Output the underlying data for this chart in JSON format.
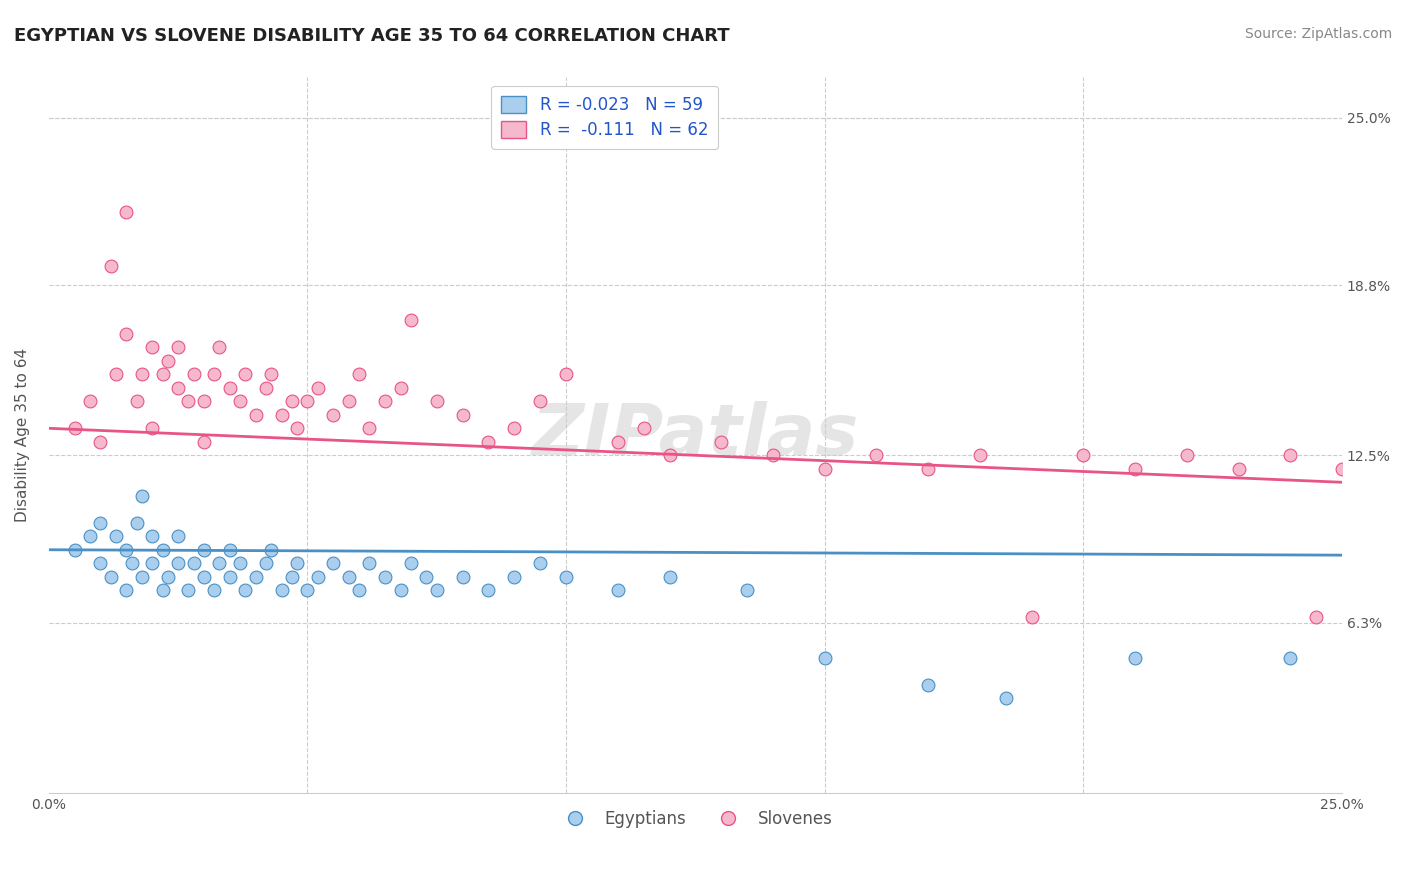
{
  "title": "EGYPTIAN VS SLOVENE DISABILITY AGE 35 TO 64 CORRELATION CHART",
  "source": "Source: ZipAtlas.com",
  "ylabel": "Disability Age 35 to 64",
  "xmin": 0.0,
  "xmax": 0.25,
  "ymin": 0.0,
  "ymax": 0.265,
  "yticks": [
    0.063,
    0.125,
    0.188,
    0.25
  ],
  "ytick_labels": [
    "6.3%",
    "12.5%",
    "18.8%",
    "25.0%"
  ],
  "right_ytick_labels": [
    "6.3%",
    "12.5%",
    "18.8%",
    "25.0%"
  ],
  "legend_r1": "R = -0.023",
  "legend_n1": "N = 59",
  "legend_r2": "R =  -0.111",
  "legend_n2": "N = 62",
  "color_egyptian": "#aacfee",
  "color_slovene": "#f5b8cc",
  "color_line_egyptian": "#4a90c4",
  "color_line_slovene": "#e85585",
  "watermark": "ZIPatlas",
  "egyptian_x": [
    0.005,
    0.008,
    0.01,
    0.01,
    0.012,
    0.013,
    0.015,
    0.015,
    0.016,
    0.017,
    0.018,
    0.018,
    0.02,
    0.02,
    0.022,
    0.022,
    0.023,
    0.025,
    0.025,
    0.027,
    0.028,
    0.03,
    0.03,
    0.032,
    0.033,
    0.035,
    0.035,
    0.037,
    0.038,
    0.04,
    0.042,
    0.043,
    0.045,
    0.047,
    0.048,
    0.05,
    0.052,
    0.055,
    0.058,
    0.06,
    0.062,
    0.065,
    0.068,
    0.07,
    0.073,
    0.075,
    0.08,
    0.085,
    0.09,
    0.095,
    0.1,
    0.11,
    0.12,
    0.135,
    0.15,
    0.17,
    0.185,
    0.21,
    0.24
  ],
  "egyptian_y": [
    0.09,
    0.095,
    0.085,
    0.1,
    0.08,
    0.095,
    0.075,
    0.09,
    0.085,
    0.1,
    0.08,
    0.11,
    0.085,
    0.095,
    0.075,
    0.09,
    0.08,
    0.085,
    0.095,
    0.075,
    0.085,
    0.08,
    0.09,
    0.075,
    0.085,
    0.08,
    0.09,
    0.085,
    0.075,
    0.08,
    0.085,
    0.09,
    0.075,
    0.08,
    0.085,
    0.075,
    0.08,
    0.085,
    0.08,
    0.075,
    0.085,
    0.08,
    0.075,
    0.085,
    0.08,
    0.075,
    0.08,
    0.075,
    0.08,
    0.085,
    0.08,
    0.075,
    0.08,
    0.075,
    0.05,
    0.04,
    0.035,
    0.05,
    0.05
  ],
  "slovene_x": [
    0.005,
    0.008,
    0.01,
    0.012,
    0.013,
    0.015,
    0.015,
    0.017,
    0.018,
    0.02,
    0.02,
    0.022,
    0.023,
    0.025,
    0.025,
    0.027,
    0.028,
    0.03,
    0.03,
    0.032,
    0.033,
    0.035,
    0.037,
    0.038,
    0.04,
    0.042,
    0.043,
    0.045,
    0.047,
    0.048,
    0.05,
    0.052,
    0.055,
    0.058,
    0.06,
    0.062,
    0.065,
    0.068,
    0.07,
    0.075,
    0.08,
    0.085,
    0.09,
    0.095,
    0.1,
    0.11,
    0.115,
    0.12,
    0.13,
    0.14,
    0.15,
    0.16,
    0.17,
    0.18,
    0.19,
    0.2,
    0.21,
    0.22,
    0.23,
    0.24,
    0.245,
    0.25
  ],
  "slovene_y": [
    0.135,
    0.145,
    0.13,
    0.195,
    0.155,
    0.17,
    0.215,
    0.145,
    0.155,
    0.135,
    0.165,
    0.155,
    0.16,
    0.15,
    0.165,
    0.145,
    0.155,
    0.13,
    0.145,
    0.155,
    0.165,
    0.15,
    0.145,
    0.155,
    0.14,
    0.15,
    0.155,
    0.14,
    0.145,
    0.135,
    0.145,
    0.15,
    0.14,
    0.145,
    0.155,
    0.135,
    0.145,
    0.15,
    0.175,
    0.145,
    0.14,
    0.13,
    0.135,
    0.145,
    0.155,
    0.13,
    0.135,
    0.125,
    0.13,
    0.125,
    0.12,
    0.125,
    0.12,
    0.125,
    0.065,
    0.125,
    0.12,
    0.125,
    0.12,
    0.125,
    0.065,
    0.12
  ],
  "title_fontsize": 13,
  "axis_label_fontsize": 11,
  "tick_fontsize": 10,
  "legend_fontsize": 12,
  "source_fontsize": 10
}
